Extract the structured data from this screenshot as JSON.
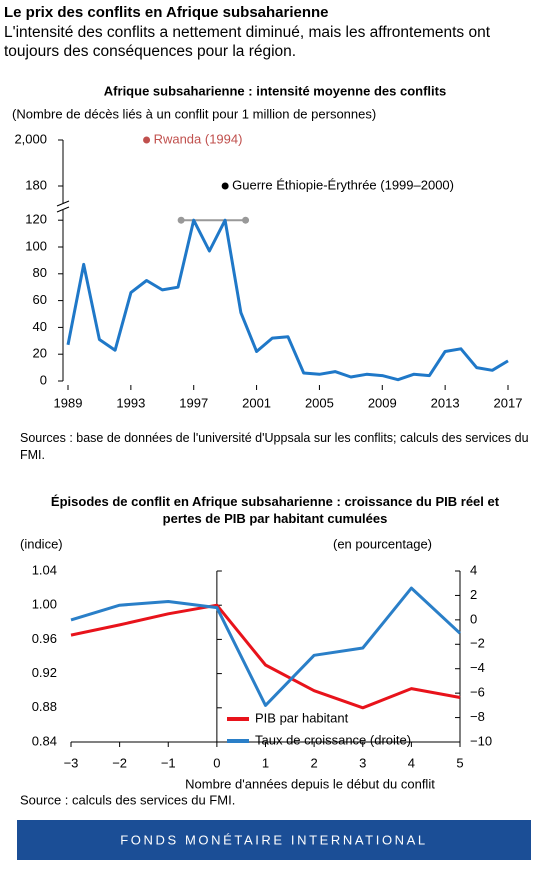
{
  "header": {
    "title": "Le prix des conflits en Afrique subsaharienne",
    "subtitle": "L'intensité des conflits a nettement diminué, mais les affrontements ont toujours des conséquences pour la région."
  },
  "chart_data": [
    {
      "type": "line",
      "title": "Afrique subsaharienne : intensité moyenne des conflits",
      "ylabel": "(Nombre de décès liés à un conflit pour 1 million de personnes)",
      "x": [
        1989,
        1990,
        1991,
        1992,
        1993,
        1994,
        1995,
        1996,
        1997,
        1998,
        1999,
        2000,
        2001,
        2002,
        2003,
        2004,
        2005,
        2006,
        2007,
        2008,
        2009,
        2010,
        2011,
        2012,
        2013,
        2014,
        2015,
        2016,
        2017
      ],
      "values": [
        27,
        87,
        31,
        23,
        66,
        75,
        68,
        70,
        120,
        97,
        120,
        51,
        22,
        32,
        33,
        6,
        5,
        7,
        3,
        5,
        4,
        1,
        5,
        4,
        22,
        24,
        10,
        8,
        15
      ],
      "color": "#1f78c8",
      "xlim": [
        1989,
        2017
      ],
      "xticks": [
        1989,
        1993,
        1997,
        2001,
        2005,
        2009,
        2013,
        2017
      ],
      "ylim": [
        0,
        2000
      ],
      "yticks": [
        0,
        20,
        40,
        60,
        80,
        100,
        120,
        180,
        {
          "value": 2000,
          "label": "2,000"
        }
      ],
      "axis_break": true,
      "annotations": [
        {
          "text": "Rwanda (1994)",
          "x": 1994,
          "y": 2000,
          "color": "#c0504d"
        },
        {
          "text": "Guerre Éthiopie-Érythrée (1999–2000)",
          "x": 1999,
          "y": 180,
          "color": "#000000"
        }
      ],
      "cap_line": {
        "x": [
          1996.2,
          2000.3
        ],
        "y": 120,
        "color": "#999999"
      },
      "source": "Sources : base de données de l'université d'Uppsala sur les conflits; calculs des services du FMI."
    },
    {
      "type": "line",
      "title": "Épisodes de conflit en Afrique subsaharienne : croissance du PIB réel et pertes de PIB par habitant cumulées",
      "ylabel": "(indice)",
      "y2label": "(en pourcentage)",
      "xlabel": "Nombre d'années depuis le début du conflit",
      "x": [
        -3,
        -2,
        -1,
        0,
        1,
        2,
        3,
        4,
        5
      ],
      "series": [
        {
          "name": "PIB par habitant",
          "color": "#e8131b",
          "values": [
            0.965,
            0.977,
            0.99,
            1.0,
            0.93,
            0.9,
            0.88,
            0.9025,
            0.892
          ]
        },
        {
          "name": "Taux de croissance (droite)",
          "color": "#2a7fc8",
          "axis": "y2",
          "values": [
            0.0,
            1.2,
            1.5,
            1.0,
            -7.0,
            -2.9,
            -2.3,
            2.6,
            -1.1
          ]
        }
      ],
      "xlim": [
        -3,
        5
      ],
      "xticks": [
        {
          "value": -3,
          "label": "−3"
        },
        {
          "value": -2,
          "label": "−2"
        },
        {
          "value": -1,
          "label": "−1"
        },
        0,
        1,
        2,
        3,
        4,
        5
      ],
      "ylim": [
        0.84,
        1.04
      ],
      "yticks": [
        0.84,
        0.88,
        0.92,
        0.96,
        {
          "value": 1.0,
          "label": "1.00"
        },
        1.04
      ],
      "y2lim": [
        -10,
        4
      ],
      "y2ticks": [
        {
          "value": -10,
          "label": "−10"
        },
        {
          "value": -8,
          "label": "−8"
        },
        {
          "value": -6,
          "label": "−6"
        },
        {
          "value": -4,
          "label": "−4"
        },
        {
          "value": -2,
          "label": "−2"
        },
        0,
        2,
        4
      ],
      "legend": "lower center",
      "source": "Source : calculs des services du FMI."
    }
  ],
  "footer": "FONDS MONÉTAIRE INTERNATIONAL"
}
